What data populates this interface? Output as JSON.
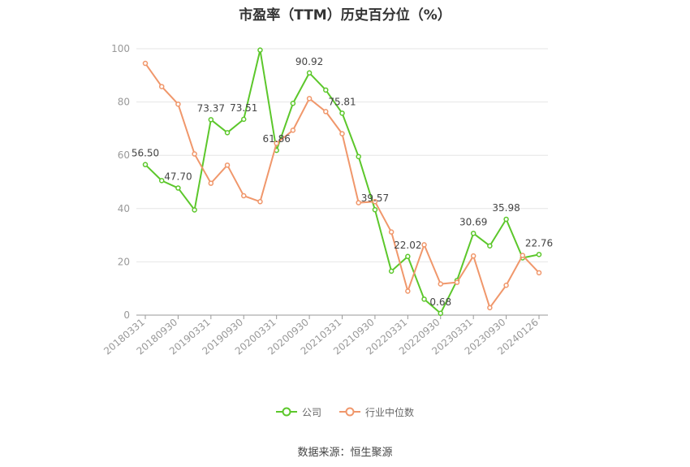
{
  "chart_data": {
    "type": "line",
    "title": "市盈率（TTM）历史百分位（%）",
    "source": "数据来源：恒生聚源",
    "ylim": [
      0,
      100
    ],
    "yticks": [
      0,
      20,
      40,
      60,
      80,
      100
    ],
    "x": [
      "20180331",
      "20180630",
      "20180930",
      "20181231",
      "20190331",
      "20190630",
      "20190930",
      "20191231",
      "20200331",
      "20200630",
      "20200930",
      "20201231",
      "20210331",
      "20210630",
      "20210930",
      "20211231",
      "20220331",
      "20220630",
      "20220930",
      "20221231",
      "20230331",
      "20230630",
      "20230930",
      "20231231",
      "20240126"
    ],
    "xtick_labels": [
      "20180331",
      "20180930",
      "20190331",
      "20190930",
      "20200331",
      "20200930",
      "20210331",
      "20210930",
      "20220331",
      "20220930",
      "20230331",
      "20230930",
      "20240126"
    ],
    "legend_position": "bottom",
    "series": [
      {
        "name": "公司",
        "color": "#5cc72b",
        "values": [
          56.5,
          50.5,
          47.7,
          39.5,
          73.37,
          68.5,
          73.51,
          99.5,
          61.86,
          79.5,
          90.92,
          84.5,
          75.81,
          59.5,
          39.57,
          16.5,
          22.02,
          6.0,
          0.68,
          13.0,
          30.69,
          26.0,
          35.98,
          21.5,
          22.76
        ],
        "labels": [
          "56.50",
          "",
          "47.70",
          "",
          "73.37",
          "",
          "73.51",
          "",
          "61.86",
          "",
          "90.92",
          "",
          "75.81",
          "",
          "39.57",
          "",
          "22.02",
          "",
          "0.68",
          "",
          "30.69",
          "",
          "35.98",
          "",
          "22.76"
        ]
      },
      {
        "name": "行业中位数",
        "color": "#f0976b",
        "values": [
          94.5,
          85.8,
          79.2,
          60.5,
          49.5,
          56.3,
          44.8,
          42.6,
          64.5,
          69.4,
          81.3,
          76.4,
          68.1,
          42.2,
          42.6,
          31.2,
          9.0,
          26.4,
          11.7,
          12.3,
          22.2,
          2.8,
          11.2,
          22.4,
          15.9
        ]
      }
    ]
  }
}
